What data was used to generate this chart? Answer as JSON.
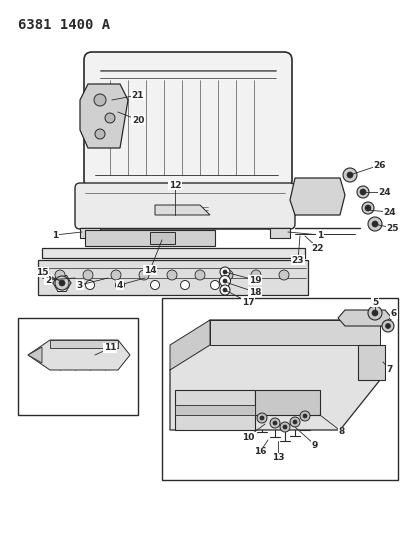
{
  "title": "6381 1400 A",
  "bg_color": "#ffffff",
  "line_color": "#2a2a2a",
  "fig_width": 4.1,
  "fig_height": 5.33,
  "dpi": 100
}
